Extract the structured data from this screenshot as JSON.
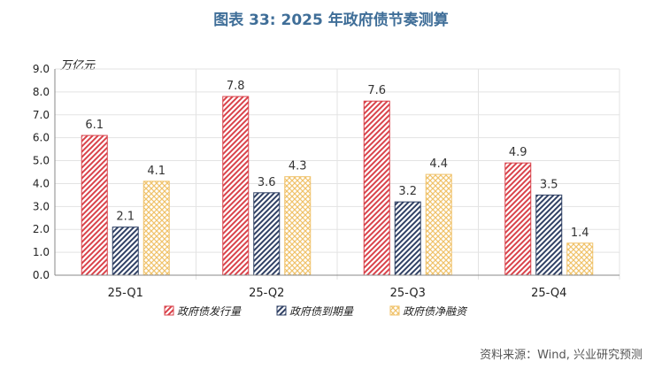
{
  "title": "图表 33: 2025 年政府债节奏测算",
  "source": "资料来源：Wind, 兴业研究预测",
  "colors": {
    "issuance": "#d9424a",
    "maturity": "#2f4064",
    "net": "#f0c26a",
    "title": "#3f6e98"
  },
  "chart_data": {
    "type": "bar",
    "title": "图表 33: 2025 年政府债节奏测算",
    "unit": "万亿元",
    "categories": [
      "25-Q1",
      "25-Q2",
      "25-Q3",
      "25-Q4"
    ],
    "series": [
      {
        "name": "政府债发行量",
        "values": [
          6.1,
          7.8,
          7.6,
          4.9
        ],
        "color": "#d9424a",
        "pattern": "diagonal-hatch"
      },
      {
        "name": "政府债到期量",
        "values": [
          2.1,
          3.6,
          3.2,
          3.5
        ],
        "color": "#2f4064",
        "pattern": "diagonal-hatch"
      },
      {
        "name": "政府债净融资",
        "values": [
          4.1,
          4.3,
          4.4,
          1.4
        ],
        "color": "#f0c26a",
        "pattern": "crosshatch"
      }
    ],
    "ylim": [
      0,
      9
    ],
    "yticks": [
      "0.0",
      "1.0",
      "2.0",
      "3.0",
      "4.0",
      "5.0",
      "6.0",
      "7.0",
      "8.0",
      "9.0"
    ],
    "grid": true,
    "legend_position": "bottom"
  }
}
